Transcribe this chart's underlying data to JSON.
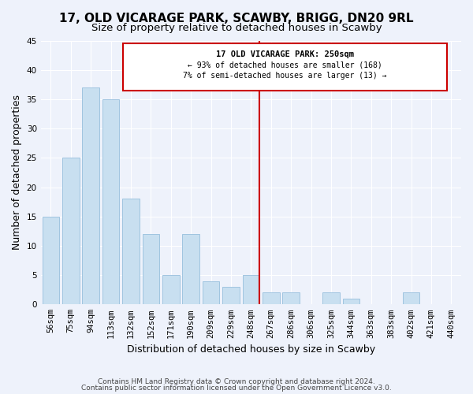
{
  "title": "17, OLD VICARAGE PARK, SCAWBY, BRIGG, DN20 9RL",
  "subtitle": "Size of property relative to detached houses in Scawby",
  "xlabel": "Distribution of detached houses by size in Scawby",
  "ylabel": "Number of detached properties",
  "bar_color": "#c8dff0",
  "bar_edge_color": "#a0c4e0",
  "categories": [
    "56sqm",
    "75sqm",
    "94sqm",
    "113sqm",
    "132sqm",
    "152sqm",
    "171sqm",
    "190sqm",
    "209sqm",
    "229sqm",
    "248sqm",
    "267sqm",
    "286sqm",
    "306sqm",
    "325sqm",
    "344sqm",
    "363sqm",
    "383sqm",
    "402sqm",
    "421sqm",
    "440sqm"
  ],
  "values": [
    15,
    25,
    37,
    35,
    18,
    12,
    5,
    12,
    4,
    3,
    5,
    2,
    2,
    0,
    2,
    1,
    0,
    0,
    2,
    0,
    0
  ],
  "ylim": [
    0,
    45
  ],
  "yticks": [
    0,
    5,
    10,
    15,
    20,
    25,
    30,
    35,
    40,
    45
  ],
  "vline_index": 10,
  "vline_color": "#cc0000",
  "annotation_title": "17 OLD VICARAGE PARK: 250sqm",
  "annotation_line1": "← 93% of detached houses are smaller (168)",
  "annotation_line2": "7% of semi-detached houses are larger (13) →",
  "annotation_box_color": "#ffffff",
  "annotation_box_edge": "#cc0000",
  "footer1": "Contains HM Land Registry data © Crown copyright and database right 2024.",
  "footer2": "Contains public sector information licensed under the Open Government Licence v3.0.",
  "background_color": "#eef2fb",
  "grid_color": "#ffffff",
  "title_fontsize": 11,
  "subtitle_fontsize": 9.5,
  "axis_label_fontsize": 9,
  "tick_fontsize": 7.5,
  "footer_fontsize": 6.5
}
